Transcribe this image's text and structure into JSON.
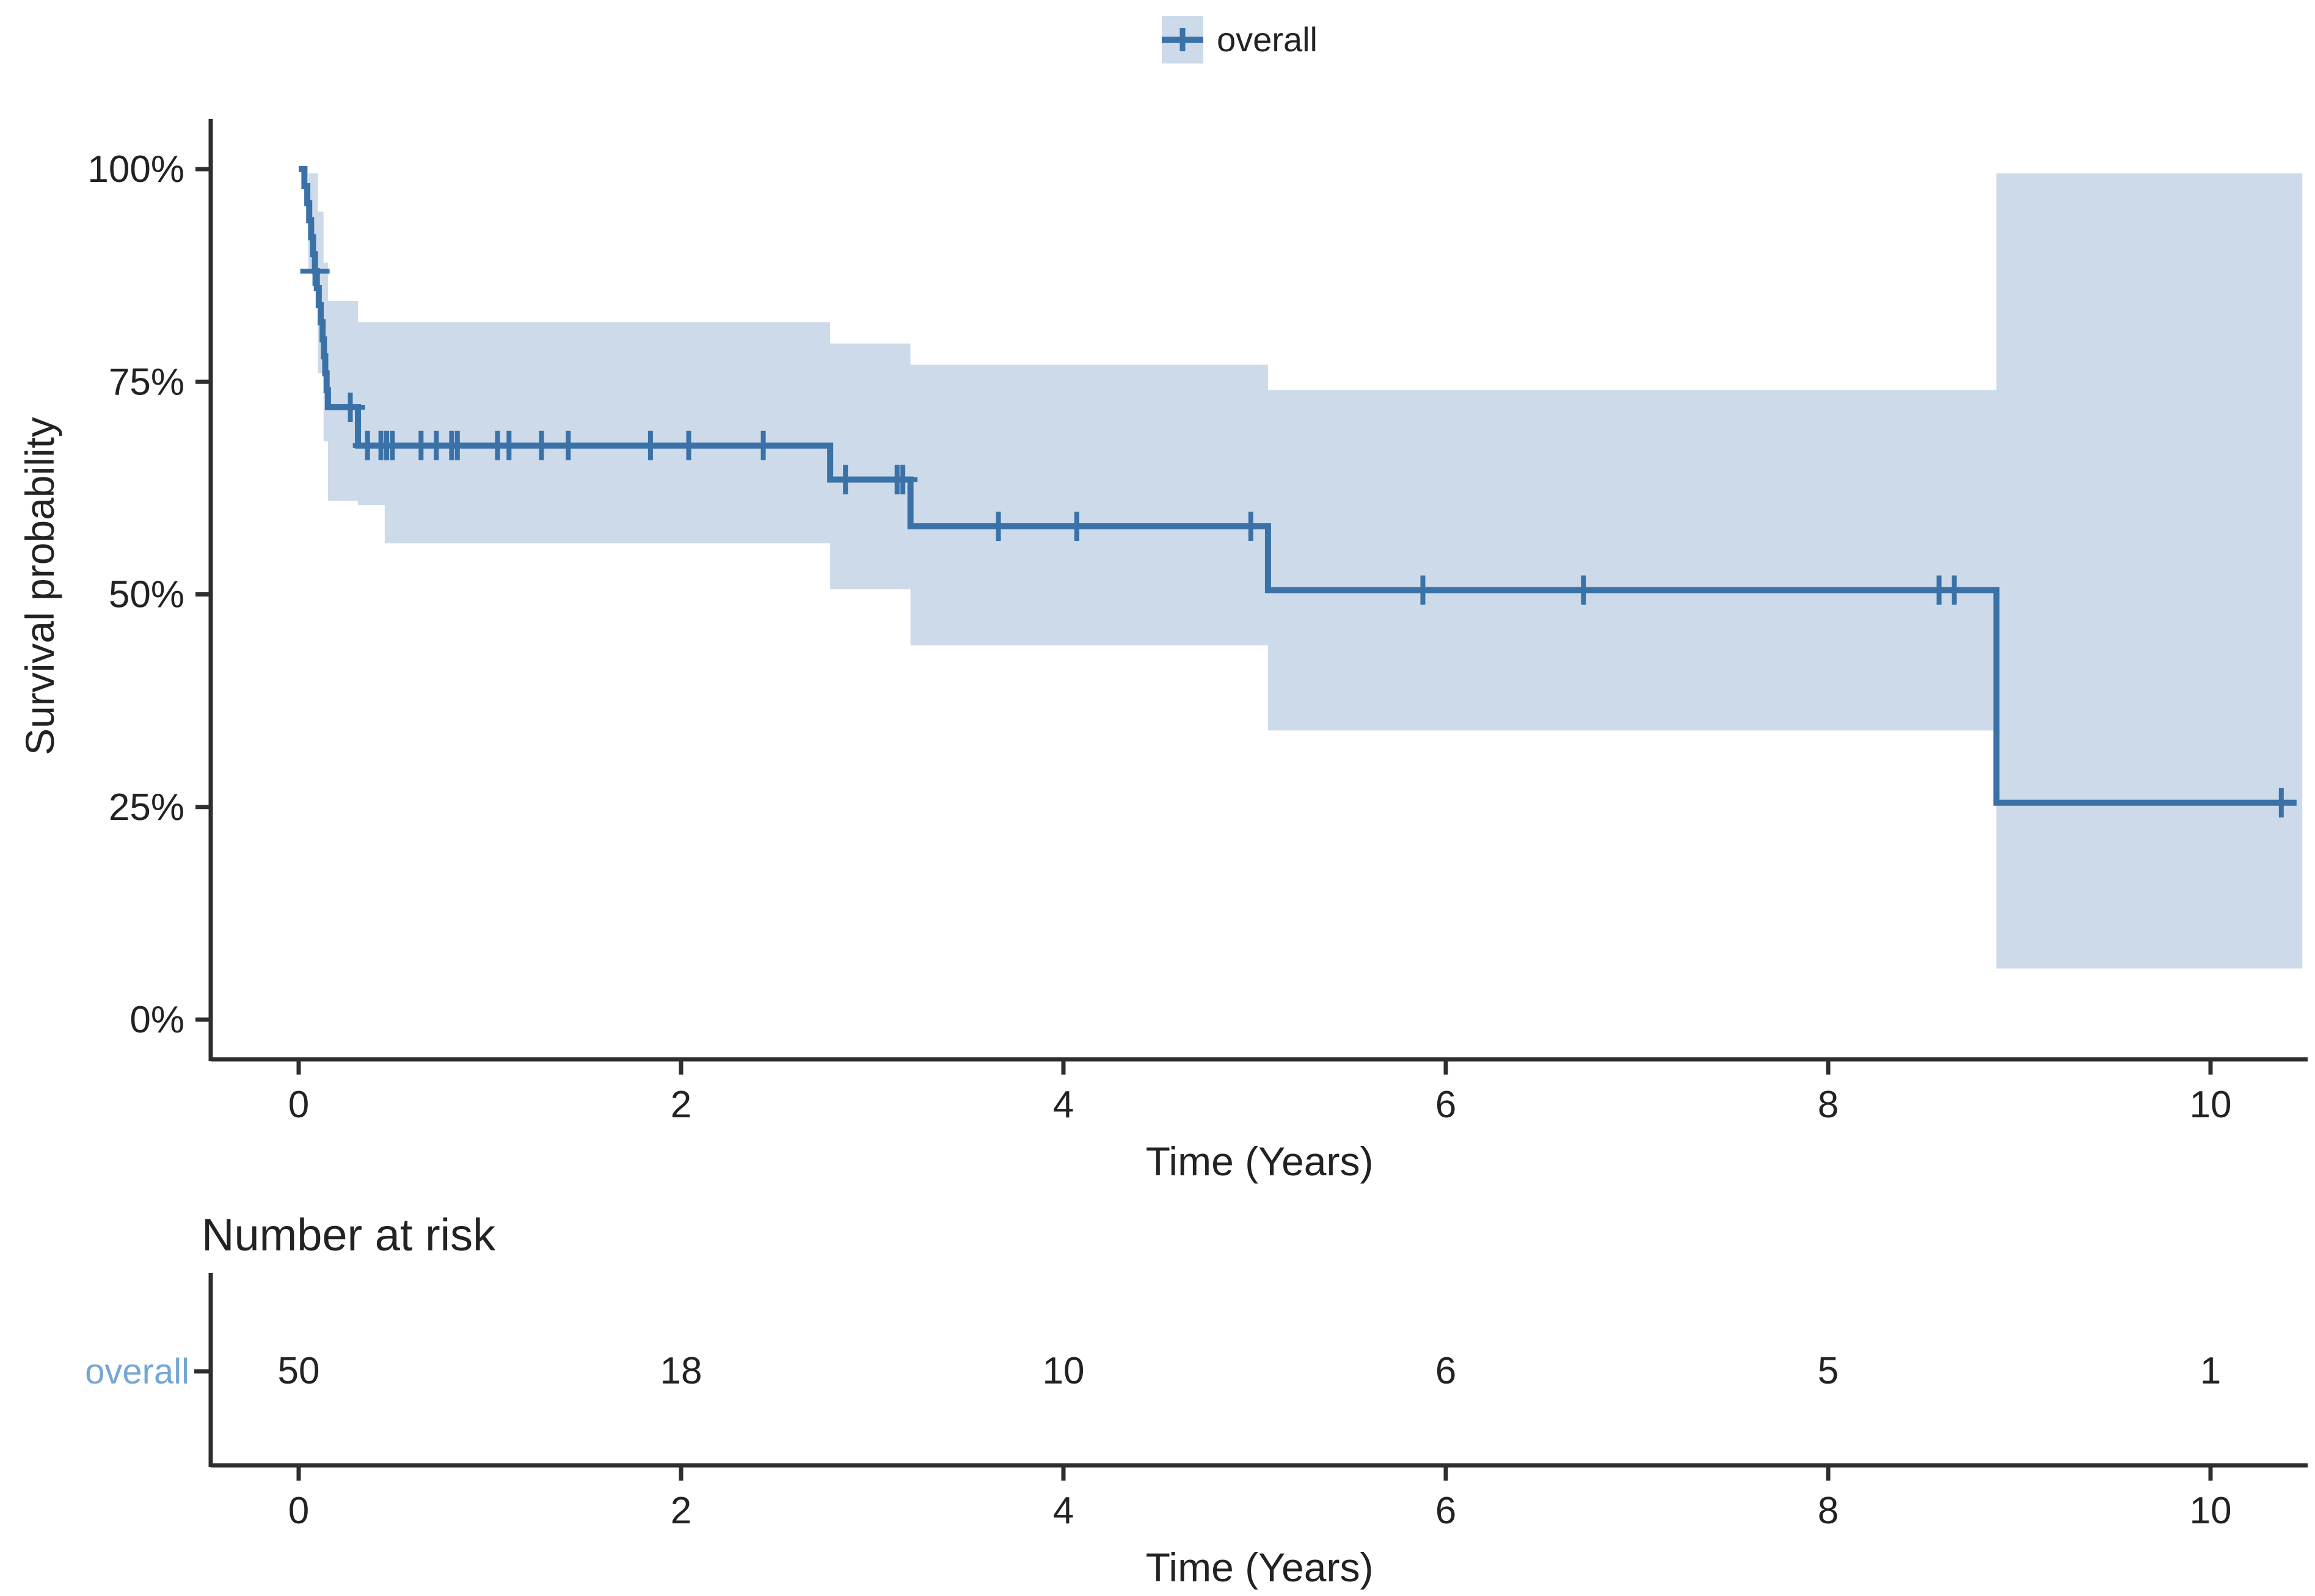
{
  "page": {
    "background": "#ffffff"
  },
  "chart_data": {
    "type": "line",
    "subtype": "kaplan-meier-survival-curve",
    "title": "",
    "legend_label": "overall",
    "legend_position": "top",
    "ylabel": "Survival probability",
    "xlabel": "Time (Years)",
    "grid": false,
    "xlim": [
      -0.45,
      10.55
    ],
    "ylim": [
      0,
      100
    ],
    "x_ticks": [
      0,
      2,
      4,
      6,
      8,
      10
    ],
    "y_ticks": [
      {
        "label": "100%",
        "value": 100
      },
      {
        "label": "75%",
        "value": 75
      },
      {
        "label": "50%",
        "value": 50
      },
      {
        "label": "25%",
        "value": 25
      },
      {
        "label": "0%",
        "value": 0
      }
    ],
    "series": [
      {
        "name": "overall",
        "survival_steps": [
          [
            0,
            100
          ],
          [
            0.03,
            98
          ],
          [
            0.045,
            96
          ],
          [
            0.055,
            94
          ],
          [
            0.065,
            92
          ],
          [
            0.075,
            90
          ],
          [
            0.085,
            88
          ],
          [
            0.095,
            86
          ],
          [
            0.105,
            84
          ],
          [
            0.115,
            82
          ],
          [
            0.125,
            80
          ],
          [
            0.132,
            78
          ],
          [
            0.139,
            76
          ],
          [
            0.146,
            74
          ],
          [
            0.153,
            72
          ],
          [
            0.31,
            67.5
          ],
          [
            2.78,
            63.5
          ],
          [
            3.2,
            58
          ],
          [
            5.07,
            50.5
          ],
          [
            8.88,
            25.5
          ]
        ],
        "t_end": 10.45,
        "censor_marks": [
          [
            0.085,
            88
          ],
          [
            0.27,
            72
          ],
          [
            0.36,
            67.5
          ],
          [
            0.43,
            67.5
          ],
          [
            0.46,
            67.5
          ],
          [
            0.49,
            67.5
          ],
          [
            0.64,
            67.5
          ],
          [
            0.72,
            67.5
          ],
          [
            0.8,
            67.5
          ],
          [
            0.83,
            67.5
          ],
          [
            1.04,
            67.5
          ],
          [
            1.1,
            67.5
          ],
          [
            1.27,
            67.5
          ],
          [
            1.41,
            67.5
          ],
          [
            1.84,
            67.5
          ],
          [
            2.04,
            67.5
          ],
          [
            2.43,
            67.5
          ],
          [
            2.86,
            63.5
          ],
          [
            3.13,
            63.5
          ],
          [
            3.16,
            63.5
          ],
          [
            3.66,
            58
          ],
          [
            4.07,
            58
          ],
          [
            4.98,
            58
          ],
          [
            5.88,
            50.5
          ],
          [
            6.72,
            50.5
          ],
          [
            8.58,
            50.5
          ],
          [
            8.66,
            50.5
          ],
          [
            10.37,
            25.5
          ]
        ],
        "ci_upper_steps": [
          [
            0.05,
            99.5
          ],
          [
            0.1,
            95
          ],
          [
            0.13,
            89
          ],
          [
            0.153,
            84.5
          ],
          [
            0.31,
            82
          ],
          [
            2.78,
            79.5
          ],
          [
            3.2,
            77
          ],
          [
            5.07,
            74
          ],
          [
            8.88,
            99.5
          ]
        ],
        "ci_lower_steps": [
          [
            0.05,
            88
          ],
          [
            0.1,
            76
          ],
          [
            0.13,
            68
          ],
          [
            0.153,
            61
          ],
          [
            0.31,
            60.5
          ],
          [
            0.45,
            56
          ],
          [
            2.78,
            50.6
          ],
          [
            3.2,
            44
          ],
          [
            5.07,
            34
          ],
          [
            8.88,
            6
          ]
        ],
        "band_t_end": 10.48
      }
    ],
    "risk_table": {
      "title": "Number at risk",
      "xlabel": "Time (Years)",
      "x_ticks": [
        0,
        2,
        4,
        6,
        8,
        10
      ],
      "rows": [
        {
          "label": "overall",
          "times": [
            0,
            2,
            4,
            6,
            8,
            10
          ],
          "counts": [
            50,
            18,
            10,
            6,
            5,
            1
          ]
        }
      ]
    },
    "colors": {
      "line": "#3a72a8",
      "band": "#ccdaea",
      "risk_row_label": "#74a7d3",
      "text": "#222222",
      "axis": "#2e2e2e"
    }
  }
}
